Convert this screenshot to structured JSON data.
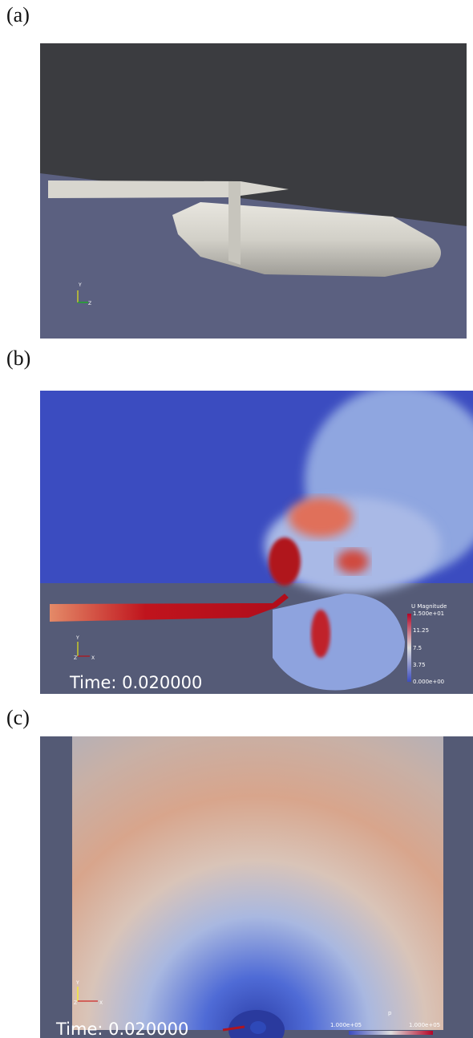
{
  "panels": [
    {
      "label": "(a)",
      "axes": [
        "Y",
        "Z"
      ]
    },
    {
      "label": "(b)",
      "axes": [
        "Y",
        "Z",
        "X"
      ],
      "time": "Time: 0.020000",
      "colorbar": {
        "title": "U Magnitude",
        "ticks": [
          "1.500e+01",
          "11.25",
          "7.5",
          "3.75",
          "0.000e+00"
        ]
      }
    },
    {
      "label": "(c)",
      "axes": [
        "Y",
        "Z",
        "X"
      ],
      "time": "Time: 0.020000",
      "colorbar": {
        "title": "p",
        "ticks": [
          "1.000e+05",
          "1.000e+05"
        ]
      }
    }
  ]
}
